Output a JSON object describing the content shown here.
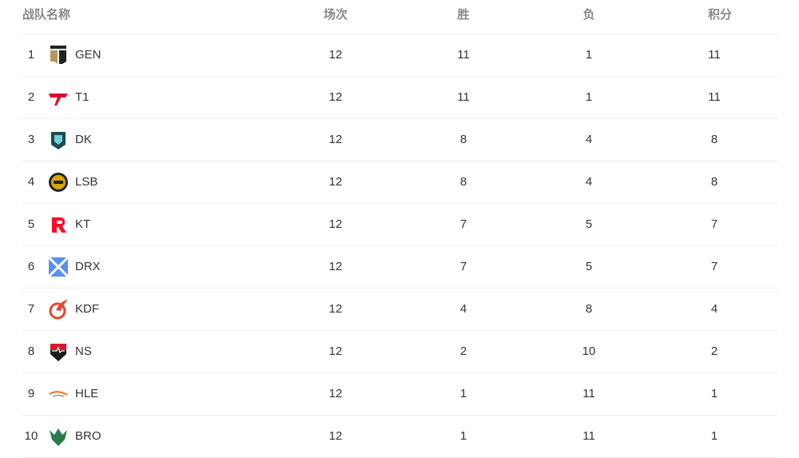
{
  "header": {
    "team": "战队名称",
    "played": "场次",
    "win": "胜",
    "loss": "负",
    "points": "积分"
  },
  "rows": [
    {
      "rank": "1",
      "team": "GEN",
      "played": "12",
      "win": "11",
      "loss": "1",
      "points": "11",
      "logo": "gen-logo",
      "color": "#b8975a"
    },
    {
      "rank": "2",
      "team": "T1",
      "played": "12",
      "win": "11",
      "loss": "1",
      "points": "11",
      "logo": "t1-logo",
      "color": "#e2012d"
    },
    {
      "rank": "3",
      "team": "DK",
      "played": "12",
      "win": "8",
      "loss": "4",
      "points": "8",
      "logo": "dk-logo",
      "color": "#1e4a52"
    },
    {
      "rank": "4",
      "team": "LSB",
      "played": "12",
      "win": "8",
      "loss": "4",
      "points": "8",
      "logo": "lsb-logo",
      "color": "#d4a900"
    },
    {
      "rank": "5",
      "team": "KT",
      "played": "12",
      "win": "7",
      "loss": "5",
      "points": "7",
      "logo": "kt-logo",
      "color": "#ff0a28"
    },
    {
      "rank": "6",
      "team": "DRX",
      "played": "12",
      "win": "7",
      "loss": "5",
      "points": "7",
      "logo": "drx-logo",
      "color": "#5a8dfa"
    },
    {
      "rank": "7",
      "team": "KDF",
      "played": "12",
      "win": "4",
      "loss": "8",
      "points": "4",
      "logo": "kdf-logo",
      "color": "#e8432f"
    },
    {
      "rank": "8",
      "team": "NS",
      "played": "12",
      "win": "2",
      "loss": "10",
      "points": "2",
      "logo": "ns-logo",
      "color": "#d7192c"
    },
    {
      "rank": "9",
      "team": "HLE",
      "played": "12",
      "win": "1",
      "loss": "11",
      "points": "1",
      "logo": "hle-logo",
      "color": "#f06a1d"
    },
    {
      "rank": "10",
      "team": "BRO",
      "played": "12",
      "win": "1",
      "loss": "11",
      "points": "1",
      "logo": "bro-logo",
      "color": "#2d7a4f"
    }
  ]
}
